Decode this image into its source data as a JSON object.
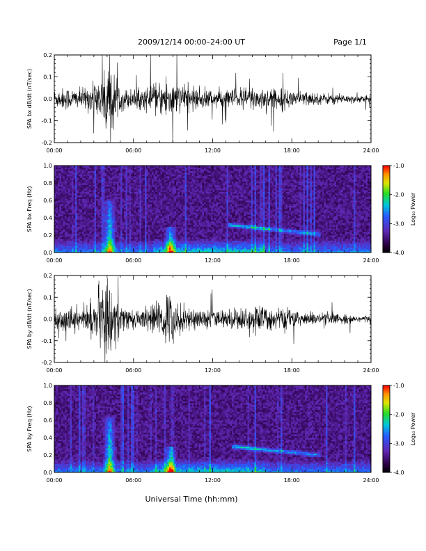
{
  "header": {
    "title": "2009/12/14  00:00–24:00 UT",
    "page": "Page 1/1"
  },
  "x_axis": {
    "label": "Universal Time (hh:mm)",
    "ticks": [
      "00:00",
      "06:00",
      "12:00",
      "18:00",
      "24:00"
    ],
    "range_hours": [
      0,
      24
    ]
  },
  "chart_data": [
    {
      "type": "line",
      "ylabel": "SPA bx dB/dt (nT/sec)",
      "ylim": [
        -0.2,
        0.2
      ],
      "yticks": [
        "-0.2",
        "-0.1",
        "0.0",
        "0.1",
        "0.2"
      ],
      "xlim": [
        0,
        24
      ],
      "envelope": {
        "hours": [
          0,
          1,
          2,
          3,
          3.5,
          4,
          4.3,
          4.7,
          5,
          6,
          7,
          8,
          8.5,
          8.8,
          9.3,
          10,
          11,
          12,
          13,
          14,
          15,
          16,
          17,
          18,
          19,
          20,
          21,
          22,
          23,
          24
        ],
        "amplitude": [
          0.05,
          0.06,
          0.05,
          0.08,
          0.12,
          0.2,
          0.2,
          0.12,
          0.06,
          0.05,
          0.06,
          0.08,
          0.13,
          0.12,
          0.08,
          0.06,
          0.06,
          0.05,
          0.05,
          0.06,
          0.07,
          0.06,
          0.05,
          0.05,
          0.04,
          0.03,
          0.03,
          0.025,
          0.02,
          0.015
        ]
      }
    },
    {
      "type": "heatmap",
      "ylabel": "SPA bx Freq (Hz)",
      "ylim": [
        0,
        1.0
      ],
      "yticks": [
        "0.0",
        "0.2",
        "0.4",
        "0.6",
        "0.8",
        "1.0"
      ],
      "xlim": [
        0,
        24
      ],
      "colorbar": {
        "label": "Log₁₀ Power",
        "range": [
          -4.0,
          -1.0
        ],
        "ticks": [
          "-1.0",
          "-2.0",
          "-3.0",
          "-4.0"
        ]
      },
      "features": {
        "pc1_band": {
          "start_hour": 13.2,
          "end_hour": 20.2,
          "freq_start": 0.32,
          "freq_end": 0.21
        },
        "bursts": [
          {
            "hour": 4.2,
            "max_freq": 0.6
          },
          {
            "hour": 8.8,
            "max_freq": 0.3
          }
        ]
      }
    },
    {
      "type": "line",
      "ylabel": "SPA by dB/dt (nT/sec)",
      "ylim": [
        -0.2,
        0.2
      ],
      "yticks": [
        "-0.2",
        "-0.1",
        "0.0",
        "0.1",
        "0.2"
      ],
      "xlim": [
        0,
        24
      ],
      "envelope": {
        "hours": [
          0,
          1,
          2,
          3,
          3.5,
          4,
          4.3,
          4.7,
          5,
          6,
          7,
          8,
          8.5,
          8.8,
          9.3,
          10,
          11,
          12,
          13,
          14,
          15,
          16,
          17,
          18,
          19,
          20,
          21,
          22,
          23,
          24
        ],
        "amplitude": [
          0.06,
          0.06,
          0.06,
          0.1,
          0.17,
          0.2,
          0.2,
          0.15,
          0.07,
          0.05,
          0.06,
          0.09,
          0.16,
          0.14,
          0.09,
          0.06,
          0.06,
          0.05,
          0.05,
          0.06,
          0.07,
          0.07,
          0.06,
          0.05,
          0.04,
          0.03,
          0.03,
          0.025,
          0.02,
          0.02
        ]
      }
    },
    {
      "type": "heatmap",
      "ylabel": "SPA by Freq (Hz)",
      "ylim": [
        0,
        1.0
      ],
      "yticks": [
        "0.0",
        "0.2",
        "0.4",
        "0.6",
        "0.8",
        "1.0"
      ],
      "xlim": [
        0,
        24
      ],
      "colorbar": {
        "label": "Log₁₀ Power",
        "range": [
          -4.0,
          -1.0
        ],
        "ticks": [
          "-1.0",
          "-2.0",
          "-3.0",
          "-4.0"
        ]
      },
      "features": {
        "pc1_band": {
          "start_hour": 13.5,
          "end_hour": 20.2,
          "freq_start": 0.3,
          "freq_end": 0.2
        },
        "bursts": [
          {
            "hour": 4.2,
            "max_freq": 0.65
          },
          {
            "hour": 8.8,
            "max_freq": 0.3
          }
        ]
      }
    }
  ]
}
